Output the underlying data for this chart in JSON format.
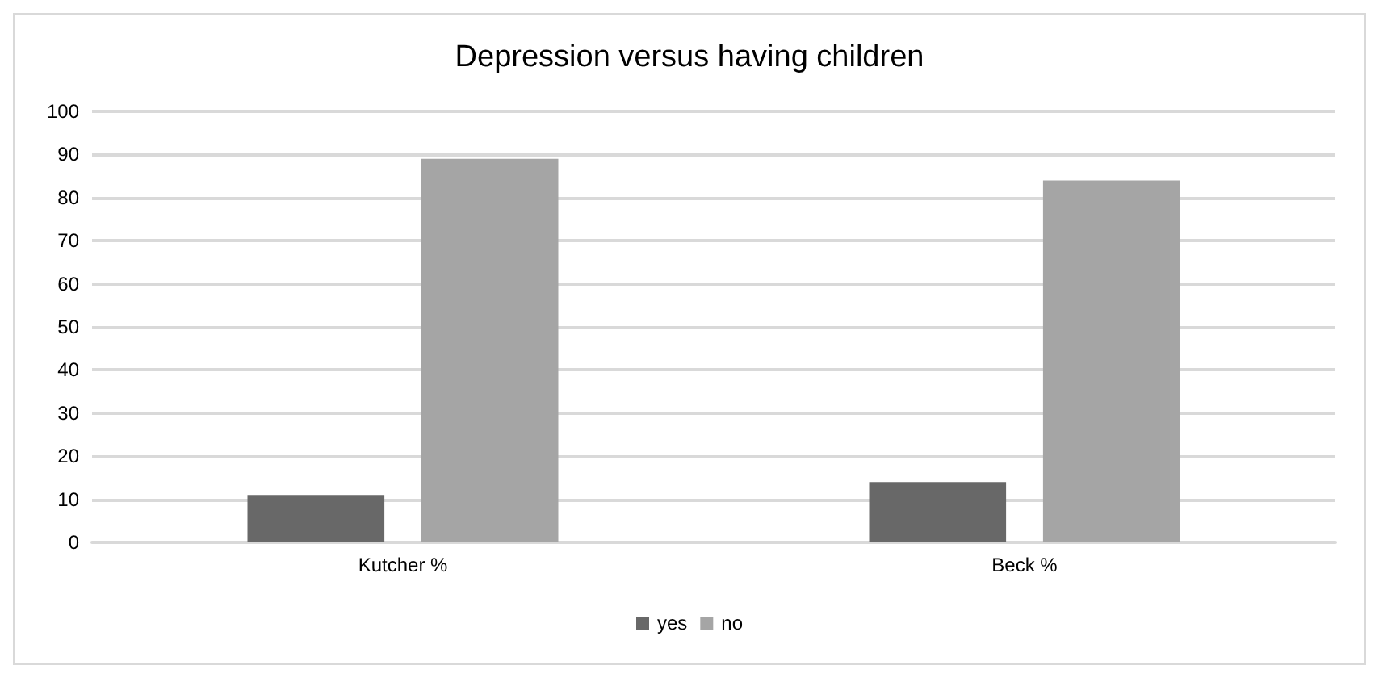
{
  "chart_data": {
    "type": "bar",
    "title": "Depression versus having children",
    "categories": [
      "Kutcher %",
      "Beck %"
    ],
    "series": [
      {
        "name": "yes",
        "color": "#686868",
        "values": [
          11,
          14
        ]
      },
      {
        "name": "no",
        "color": "#a5a5a5",
        "values": [
          89,
          84
        ]
      }
    ],
    "ylim": [
      0,
      100
    ],
    "yticks": [
      0,
      10,
      20,
      30,
      40,
      50,
      60,
      70,
      80,
      90,
      100
    ],
    "grid": "y",
    "legend": "bottom"
  }
}
